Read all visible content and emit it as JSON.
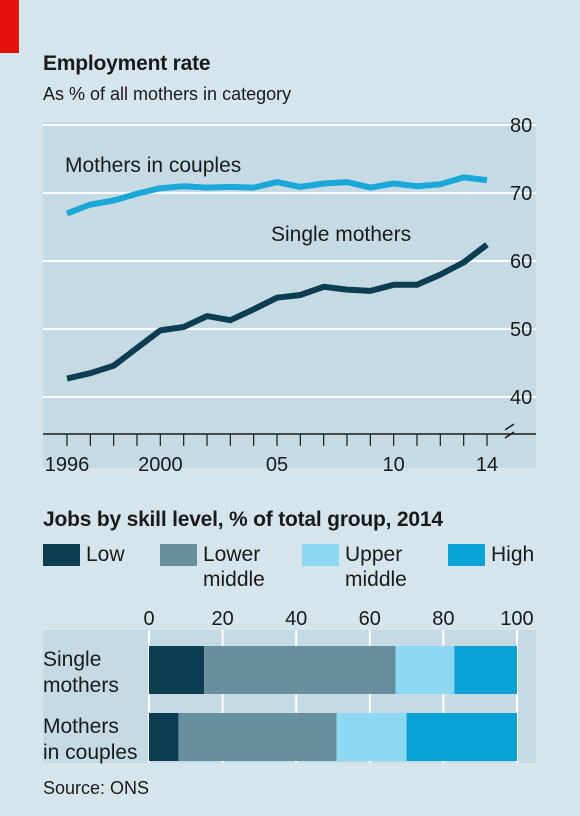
{
  "header": {
    "title": "Employment rate",
    "subtitle": "As % of all mothers in category"
  },
  "bar_header": {
    "title": "Jobs by skill level, % of total group, 2014"
  },
  "source": "Source: ONS",
  "colors": {
    "background": "#d6e5ec",
    "panel": "#c6dae3",
    "mothers_in_couples": "#1aa8d8",
    "single_mothers": "#0c3d52",
    "low": "#0c3d52",
    "lower_middle": "#688f9e",
    "upper_middle": "#8dd8f2",
    "high": "#0aa1d5",
    "accent_red": "#e3120b"
  },
  "chart_data": [
    {
      "type": "line",
      "title": "Employment rate",
      "subtitle": "As % of all mothers in category",
      "x_tick_labels": [
        "1996",
        "2000",
        "05",
        "10",
        "14"
      ],
      "x_tick_years": [
        1996,
        2000,
        2005,
        2010,
        2014
      ],
      "y_ticks": [
        40,
        50,
        60,
        70,
        80
      ],
      "ylim": [
        37,
        80
      ],
      "xlim": [
        1996,
        2014
      ],
      "grid": true,
      "series": [
        {
          "name": "Mothers in couples",
          "color": "#1aa8d8",
          "x": [
            1996,
            1997,
            1998,
            1999,
            2000,
            2001,
            2002,
            2003,
            2004,
            2005,
            2006,
            2007,
            2008,
            2009,
            2010,
            2011,
            2012,
            2013,
            2014
          ],
          "values": [
            67.0,
            68.3,
            68.9,
            69.9,
            70.7,
            71.0,
            70.8,
            70.9,
            70.8,
            71.6,
            70.9,
            71.4,
            71.6,
            70.8,
            71.4,
            71.0,
            71.3,
            72.3,
            71.9
          ]
        },
        {
          "name": "Single mothers",
          "color": "#0c3d52",
          "x": [
            1996,
            1997,
            1998,
            1999,
            2000,
            2001,
            2002,
            2003,
            2004,
            2005,
            2006,
            2007,
            2008,
            2009,
            2010,
            2011,
            2012,
            2013,
            2014
          ],
          "values": [
            42.7,
            43.5,
            44.6,
            47.2,
            49.8,
            50.3,
            51.9,
            51.3,
            52.9,
            54.6,
            55.0,
            56.2,
            55.8,
            55.6,
            56.5,
            56.5,
            58.0,
            59.8,
            62.4
          ]
        }
      ]
    },
    {
      "type": "bar",
      "orientation": "horizontal",
      "stacked": true,
      "title": "Jobs by skill level, % of total group, 2014",
      "x_ticks": [
        0,
        20,
        40,
        60,
        80,
        100
      ],
      "xlim": [
        0,
        100
      ],
      "legend_position": "top",
      "legend": [
        {
          "label": "Low",
          "color": "#0c3d52"
        },
        {
          "label": "Lower middle",
          "color": "#688f9e"
        },
        {
          "label": "Upper middle",
          "color": "#8dd8f2"
        },
        {
          "label": "High",
          "color": "#0aa1d5"
        }
      ],
      "categories": [
        "Single mothers",
        "Mothers in couples"
      ],
      "category_label_lines": [
        [
          "Single",
          "mothers"
        ],
        [
          "Mothers",
          "in couples"
        ]
      ],
      "series": [
        {
          "name": "Low",
          "values": [
            15,
            8
          ]
        },
        {
          "name": "Lower middle",
          "values": [
            52,
            43
          ]
        },
        {
          "name": "Upper middle",
          "values": [
            16,
            19
          ]
        },
        {
          "name": "High",
          "values": [
            17,
            30
          ]
        }
      ]
    }
  ]
}
